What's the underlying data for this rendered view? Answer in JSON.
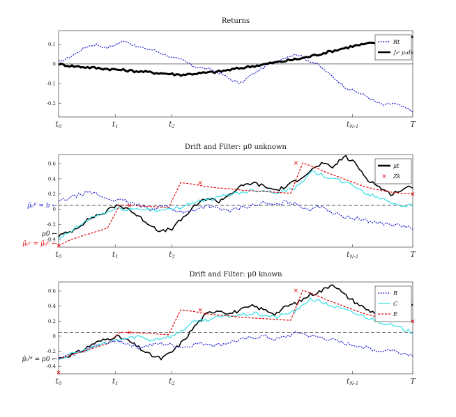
{
  "chart_data": [
    {
      "type": "line",
      "title": "Returns",
      "ylim": [
        -0.27,
        0.17
      ],
      "yticks": [
        0.1,
        0,
        -0.1,
        -0.2
      ],
      "ytick_labels": [
        "0.1",
        "0",
        "-0.1",
        "-0.2"
      ],
      "xtick_labels": [
        "t0",
        "t1",
        "t2",
        "tN-1",
        "T"
      ],
      "legend_loc": "top-right",
      "series": [
        {
          "name": "Rt",
          "color": "#1c1cd0",
          "style": "dotted",
          "values": [
            0.01,
            0.03,
            0.06,
            0.09,
            0.1,
            0.08,
            0.1,
            0.12,
            0.09,
            0.08,
            0.07,
            0.05,
            0.03,
            0.02,
            -0.01,
            -0.02,
            -0.03,
            -0.05,
            -0.08,
            -0.1,
            -0.06,
            -0.03,
            0.0,
            0.02,
            0.04,
            0.05,
            0.02,
            0.0,
            -0.04,
            -0.08,
            -0.12,
            -0.14,
            -0.16,
            -0.19,
            -0.21,
            -0.2,
            -0.22,
            -0.24
          ]
        },
        {
          "name": "∫₀ᵗ μₛds",
          "color": "#000000",
          "style": "solid",
          "values": [
            0.0,
            -0.01,
            -0.015,
            -0.02,
            -0.025,
            -0.03,
            -0.035,
            -0.04,
            -0.045,
            -0.05,
            -0.055,
            -0.05,
            -0.045,
            -0.04,
            -0.03,
            -0.02,
            -0.01,
            0.0,
            0.01,
            0.02,
            0.03,
            0.045,
            0.06,
            0.075,
            0.09,
            0.1,
            0.11,
            0.12,
            0.13,
            0.14
          ]
        }
      ]
    },
    {
      "type": "line",
      "title": "Drift and Filter: μ0 unknown",
      "ylim": [
        -0.5,
        0.72
      ],
      "yticks": [
        0.6,
        0.4,
        0.2,
        0,
        -0.2,
        -0.4
      ],
      "ytick_labels": [
        "0.6",
        "0.4",
        "0.2",
        "0",
        "-0.2",
        "-0.4"
      ],
      "xtick_labels": [
        "t0",
        "t1",
        "t2",
        "tN-1",
        "T"
      ],
      "legend_loc": "top-right",
      "annotations": [
        "μ̂₀ᴮ = b",
        "μ0",
        "μ̂₀ᶜ = μ̂₀ᴱ"
      ],
      "series": [
        {
          "name": "μt",
          "color": "#000000",
          "style": "solid",
          "values": [
            -0.35,
            -0.3,
            -0.2,
            -0.1,
            -0.05,
            0.05,
            0.02,
            -0.1,
            -0.2,
            -0.3,
            -0.25,
            -0.1,
            0.05,
            0.15,
            0.1,
            0.2,
            0.3,
            0.35,
            0.3,
            0.25,
            0.3,
            0.4,
            0.5,
            0.6,
            0.55,
            0.7,
            0.6,
            0.4,
            0.3,
            0.2,
            0.25,
            0.3
          ]
        },
        {
          "name": "Zk",
          "color": "#e00000",
          "style": "cross",
          "x": [
            0.0,
            0.2,
            0.4,
            0.67,
            1.0
          ],
          "values": [
            -0.48,
            0.05,
            0.35,
            0.61,
            0.2
          ]
        },
        {
          "name": "",
          "color": "#1c1cd0",
          "style": "dotted",
          "values": [
            0.1,
            0.15,
            0.2,
            0.22,
            0.15,
            0.12,
            0.1,
            0.05,
            0.0,
            0.05,
            0.0,
            -0.05,
            0.0,
            0.05,
            0.0,
            -0.02,
            0.02,
            0.05,
            0.08,
            0.05,
            0.1,
            0.05,
            0.0,
            0.05,
            -0.05,
            -0.1,
            -0.12,
            -0.15,
            -0.18,
            -0.2,
            -0.22,
            -0.25
          ]
        },
        {
          "name": "",
          "color": "#33e0e8",
          "style": "solid",
          "values": [
            -0.4,
            -0.3,
            -0.2,
            -0.1,
            -0.05,
            0.0,
            0.0,
            0.0,
            0.0,
            -0.02,
            0.0,
            0.05,
            0.1,
            0.12,
            0.15,
            0.2,
            0.22,
            0.25,
            0.25,
            0.22,
            0.25,
            0.3,
            0.5,
            0.45,
            0.4,
            0.35,
            0.3,
            0.2,
            0.15,
            0.1,
            0.05,
            0.05
          ]
        },
        {
          "name": "",
          "color": "#e00000",
          "style": "dashed",
          "values": [
            -0.48,
            -0.4,
            -0.35,
            -0.3,
            -0.25,
            0.05,
            0.05,
            0.04,
            0.03,
            0.02,
            0.35,
            0.33,
            0.3,
            0.28,
            0.27,
            0.25,
            0.24,
            0.23,
            0.22,
            0.21,
            0.61,
            0.55,
            0.48,
            0.42,
            0.36,
            0.3,
            0.26,
            0.23,
            0.21,
            0.2
          ]
        }
      ]
    },
    {
      "type": "line",
      "title": "Drift and Filter: μ0 known",
      "ylim": [
        -0.5,
        0.72
      ],
      "yticks": [
        0.6,
        0.4,
        0.2,
        0,
        -0.2,
        -0.4
      ],
      "ytick_labels": [
        "0.6",
        "0.4",
        "0.2",
        "0",
        "-0.2",
        "-0.4"
      ],
      "xtick_labels": [
        "t0",
        "t1",
        "t2",
        "tN-1",
        "T"
      ],
      "legend_loc": "top-right",
      "annotations": [
        "μ̂₀ᴹ = μ0"
      ],
      "series": [
        {
          "name": "",
          "color": "#000000",
          "style": "solid",
          "values": [
            -0.3,
            -0.25,
            -0.2,
            -0.1,
            -0.05,
            0.0,
            -0.05,
            -0.15,
            -0.25,
            -0.3,
            -0.2,
            -0.05,
            0.15,
            0.3,
            0.35,
            0.3,
            0.35,
            0.4,
            0.35,
            0.3,
            0.4,
            0.45,
            0.55,
            0.6,
            0.7,
            0.55,
            0.45,
            0.35,
            0.3,
            0.25,
            0.3,
            0.4
          ]
        },
        {
          "name": "",
          "color": "#e00000",
          "style": "cross",
          "x": [
            0.0,
            0.2,
            0.4,
            0.67,
            1.0
          ],
          "values": [
            -0.48,
            0.05,
            0.35,
            0.61,
            0.2
          ]
        },
        {
          "name": "R",
          "color": "#1c1cd0",
          "style": "dotted",
          "values": [
            -0.3,
            -0.25,
            -0.2,
            -0.15,
            -0.1,
            -0.05,
            -0.1,
            -0.15,
            -0.12,
            -0.1,
            -0.12,
            -0.15,
            -0.1,
            -0.1,
            -0.12,
            -0.08,
            -0.05,
            -0.02,
            0.0,
            -0.05,
            0.0,
            0.05,
            0.0,
            -0.02,
            -0.05,
            -0.1,
            -0.12,
            -0.15,
            -0.2,
            -0.18,
            -0.22,
            -0.25
          ]
        },
        {
          "name": "C",
          "color": "#33e0e8",
          "style": "solid",
          "values": [
            -0.3,
            -0.25,
            -0.2,
            -0.15,
            -0.1,
            -0.05,
            -0.03,
            0.0,
            -0.05,
            -0.02,
            0.0,
            0.1,
            0.2,
            0.22,
            0.25,
            0.27,
            0.28,
            0.3,
            0.28,
            0.25,
            0.3,
            0.35,
            0.5,
            0.45,
            0.4,
            0.35,
            0.3,
            0.25,
            0.2,
            0.15,
            0.1,
            0.05
          ]
        },
        {
          "name": "E",
          "color": "#e00000",
          "style": "dashed",
          "values": [
            -0.3,
            -0.25,
            -0.2,
            -0.15,
            -0.1,
            0.05,
            0.05,
            0.04,
            0.03,
            0.02,
            0.35,
            0.33,
            0.3,
            0.28,
            0.27,
            0.25,
            0.24,
            0.23,
            0.22,
            0.21,
            0.61,
            0.55,
            0.48,
            0.42,
            0.36,
            0.3,
            0.26,
            0.23,
            0.21,
            0.2
          ]
        }
      ]
    }
  ]
}
